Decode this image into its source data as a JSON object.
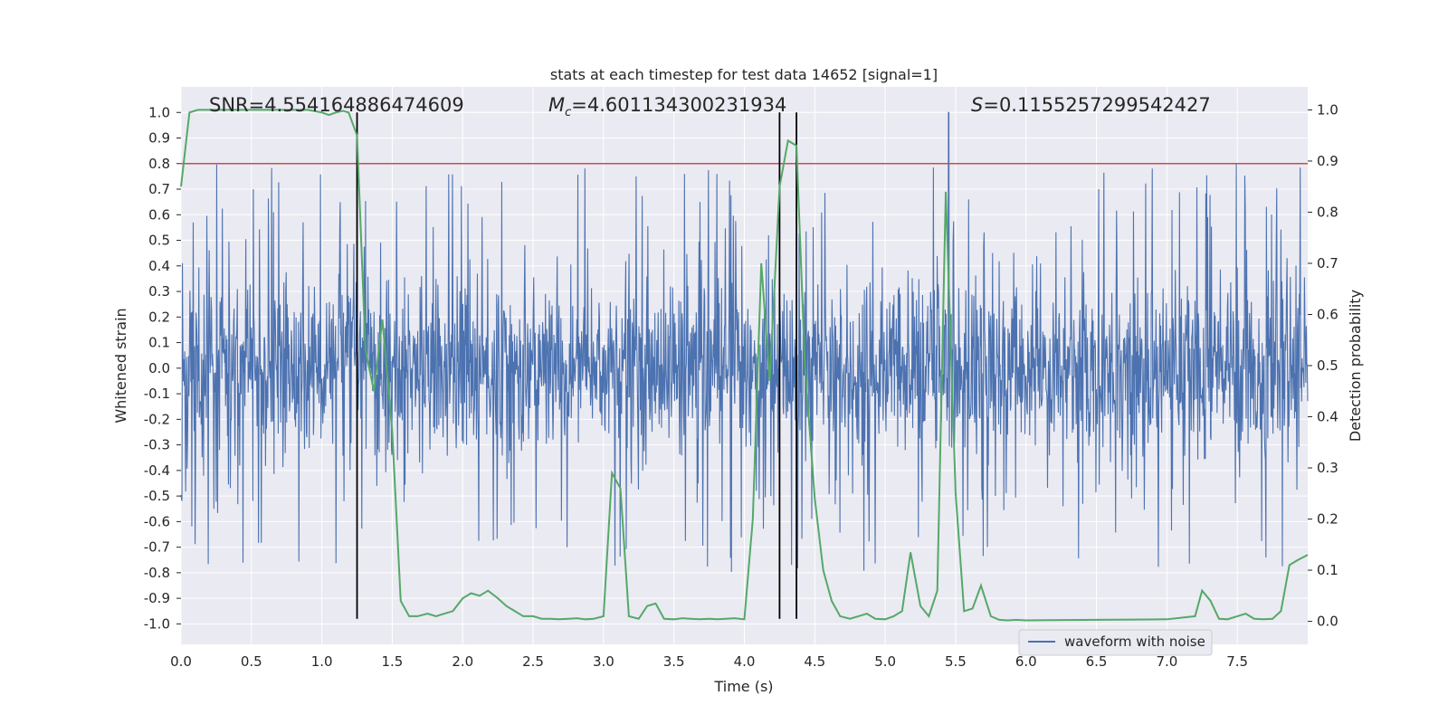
{
  "chart_data": {
    "type": "line",
    "title": "stats at each timestep for test data 14652 [signal=1]",
    "xlabel": "Time (s)",
    "ylabel": "Whitened strain",
    "y2label": "Detection probability",
    "xlim": [
      0.0,
      8.0
    ],
    "ylim": [
      -1.08,
      1.1
    ],
    "y2lim": [
      -0.045,
      1.045
    ],
    "xticks": [
      "0.0",
      "0.5",
      "1.0",
      "1.5",
      "2.0",
      "2.5",
      "3.0",
      "3.5",
      "4.0",
      "4.5",
      "5.0",
      "5.5",
      "6.0",
      "6.5",
      "7.0",
      "7.5"
    ],
    "yticks": [
      "1.0",
      "0.9",
      "0.8",
      "0.7",
      "0.6",
      "0.5",
      "0.4",
      "0.3",
      "0.2",
      "0.1",
      "0.0",
      "-0.1",
      "-0.2",
      "-0.3",
      "-0.4",
      "-0.5",
      "-0.6",
      "-0.7",
      "-0.8",
      "-0.9",
      "-1.0"
    ],
    "y2ticks": [
      "1.0",
      "0.9",
      "0.8",
      "0.7",
      "0.6",
      "0.5",
      "0.4",
      "0.3",
      "0.2",
      "0.1",
      "0.0"
    ],
    "grid": true,
    "legend": {
      "placement": "lower-right",
      "entries": [
        "waveform with noise"
      ]
    },
    "annotations": {
      "snr": "SNR=4.554164886474609",
      "mc_symbol": "M",
      "mc_sub": "c",
      "mc_value": "=4.601134300231934",
      "s_symbol": "S",
      "s_value": "=0.1155257299542427"
    },
    "threshold": {
      "value": 0.8,
      "axis": "left",
      "color": "#c44e52"
    },
    "vertical_markers": [
      1.25,
      4.25,
      4.37
    ],
    "vertical_marker_range": [
      -0.98,
      1.0
    ],
    "series": [
      {
        "name": "waveform with noise",
        "axis": "left",
        "color": "#4c72b0",
        "description": "dense whitened strain noise, typical envelope ±0.4 to ±0.6, occasional spikes to ±0.85 and one to 1.0 near t=5.45"
      },
      {
        "axis": "right",
        "color": "#55a868",
        "x": [
          0.0,
          0.06,
          0.12,
          0.2,
          0.3,
          0.4,
          0.5,
          0.6,
          0.7,
          0.8,
          0.9,
          1.0,
          1.05,
          1.1,
          1.15,
          1.19,
          1.25,
          1.31,
          1.37,
          1.43,
          1.5,
          1.56,
          1.62,
          1.68,
          1.75,
          1.81,
          1.87,
          1.93,
          2.0,
          2.06,
          2.12,
          2.18,
          2.25,
          2.31,
          2.37,
          2.43,
          2.5,
          2.56,
          2.62,
          2.68,
          2.75,
          2.81,
          2.87,
          2.93,
          3.0,
          3.06,
          3.12,
          3.18,
          3.25,
          3.31,
          3.37,
          3.43,
          3.5,
          3.56,
          3.62,
          3.68,
          3.75,
          3.81,
          3.87,
          3.93,
          4.0,
          4.06,
          4.12,
          4.18,
          4.25,
          4.31,
          4.37,
          4.43,
          4.5,
          4.56,
          4.62,
          4.68,
          4.75,
          4.81,
          4.87,
          4.93,
          5.0,
          5.06,
          5.12,
          5.18,
          5.25,
          5.31,
          5.37,
          5.43,
          5.5,
          5.56,
          5.62,
          5.68,
          5.75,
          5.81,
          5.87,
          5.93,
          6.0,
          6.5,
          7.0,
          7.2,
          7.25,
          7.31,
          7.37,
          7.43,
          7.5,
          7.56,
          7.62,
          7.68,
          7.75,
          7.81,
          7.87,
          7.93,
          8.0
        ],
        "values": [
          0.85,
          0.995,
          1.0,
          1.0,
          1.0,
          1.0,
          1.0,
          1.0,
          1.0,
          1.0,
          1.0,
          0.995,
          0.99,
          0.995,
          0.998,
          0.995,
          0.95,
          0.53,
          0.45,
          0.59,
          0.37,
          0.04,
          0.01,
          0.01,
          0.015,
          0.01,
          0.015,
          0.02,
          0.045,
          0.055,
          0.05,
          0.06,
          0.045,
          0.03,
          0.02,
          0.01,
          0.01,
          0.005,
          0.005,
          0.004,
          0.005,
          0.006,
          0.004,
          0.005,
          0.01,
          0.29,
          0.26,
          0.01,
          0.005,
          0.03,
          0.035,
          0.005,
          0.004,
          0.006,
          0.005,
          0.004,
          0.005,
          0.004,
          0.005,
          0.006,
          0.004,
          0.2,
          0.7,
          0.47,
          0.85,
          0.94,
          0.93,
          0.5,
          0.24,
          0.1,
          0.04,
          0.01,
          0.005,
          0.01,
          0.015,
          0.005,
          0.004,
          0.01,
          0.02,
          0.135,
          0.03,
          0.01,
          0.06,
          0.84,
          0.25,
          0.02,
          0.025,
          0.07,
          0.01,
          0.003,
          0.002,
          0.003,
          0.002,
          0.003,
          0.004,
          0.01,
          0.06,
          0.04,
          0.005,
          0.004,
          0.01,
          0.015,
          0.005,
          0.004,
          0.005,
          0.02,
          0.11,
          0.12,
          0.13
        ]
      }
    ]
  }
}
